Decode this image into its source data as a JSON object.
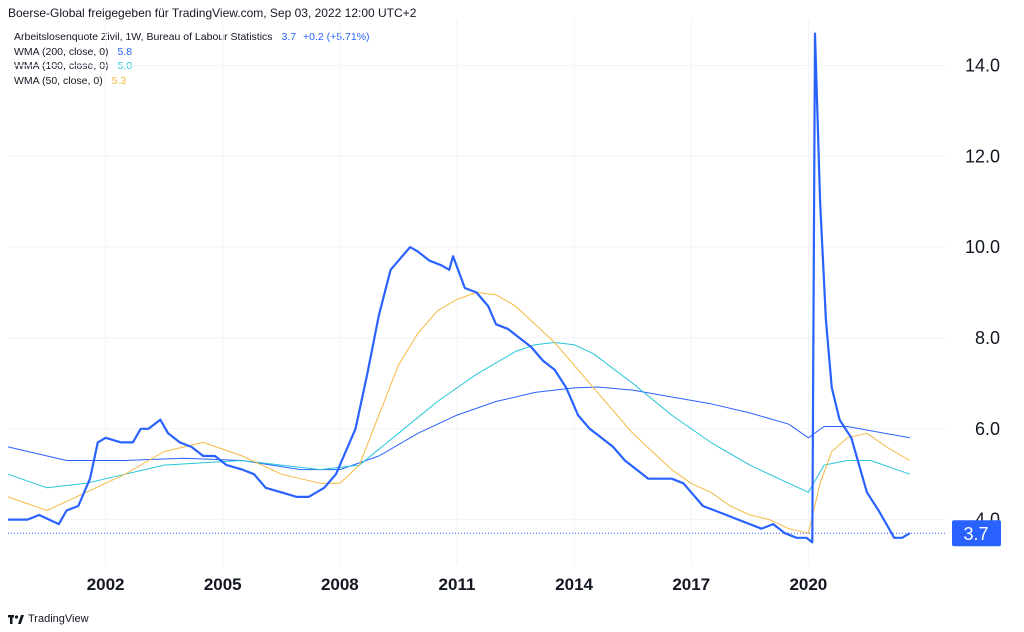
{
  "header": {
    "text": "Boerse-Global freigegeben für TradingView.com, Sep 03, 2022 12:00 UTC+2"
  },
  "legend": [
    {
      "label": "Arbeitslosenquote Zivil, 1W, Bureau of Labour Statistics",
      "value": "3.7",
      "change": "+0.2 (+5.71%)",
      "color": "#2962ff"
    },
    {
      "label": "WMA (200, close, 0)",
      "value": "5.8",
      "color": "#2962ff"
    },
    {
      "label": "WMA (100, close, 0)",
      "value": "5.0",
      "color": "#26c6da"
    },
    {
      "label": "WMA (50, close, 0)",
      "value": "5.3",
      "color": "#f5b942"
    }
  ],
  "footer": {
    "brand": "TradingView",
    "logo": "tradingview-logo-icon"
  },
  "price_label": {
    "value": "3.7",
    "color": "#2962ff"
  },
  "chart_data": {
    "type": "line",
    "xlim": [
      1999.5,
      2023.5
    ],
    "ylim": [
      3.0,
      15.0
    ],
    "yticks": [
      4.0,
      6.0,
      8.0,
      10.0,
      12.0,
      14.0
    ],
    "ytick_labels": [
      "4.0",
      "6.0",
      "8.0",
      "10.0",
      "12.0",
      "14.0"
    ],
    "xticks": [
      2002,
      2005,
      2008,
      2011,
      2014,
      2017,
      2020
    ],
    "xtick_labels": [
      "2002",
      "2005",
      "2008",
      "2011",
      "2014",
      "2017",
      "2020"
    ],
    "grid": true,
    "last_value": 3.7,
    "series": [
      {
        "color": "#2962ff",
        "width": 2.2,
        "x": [
          1999.5,
          2000.0,
          2000.3,
          2000.8,
          2001.0,
          2001.3,
          2001.6,
          2001.8,
          2002.0,
          2002.4,
          2002.7,
          2002.9,
          2003.1,
          2003.4,
          2003.6,
          2003.9,
          2004.2,
          2004.5,
          2004.8,
          2005.1,
          2005.5,
          2005.8,
          2006.1,
          2006.5,
          2006.9,
          2007.2,
          2007.6,
          2007.9,
          2008.1,
          2008.4,
          2008.7,
          2009.0,
          2009.3,
          2009.6,
          2009.8,
          2010.0,
          2010.3,
          2010.6,
          2010.8,
          2010.9,
          2011.2,
          2011.5,
          2011.8,
          2012.0,
          2012.3,
          2012.6,
          2012.9,
          2013.2,
          2013.5,
          2013.8,
          2014.1,
          2014.4,
          2014.7,
          2015.0,
          2015.3,
          2015.6,
          2015.9,
          2016.2,
          2016.5,
          2016.8,
          2017.0,
          2017.3,
          2017.6,
          2017.9,
          2018.2,
          2018.5,
          2018.8,
          2019.1,
          2019.4,
          2019.7,
          2019.95,
          2020.1,
          2020.17,
          2020.3,
          2020.45,
          2020.6,
          2020.8,
          2020.95,
          2021.1,
          2021.3,
          2021.5,
          2021.8,
          2022.0,
          2022.2,
          2022.4,
          2022.6
        ],
        "y": [
          4.0,
          4.0,
          4.1,
          3.9,
          4.2,
          4.3,
          4.9,
          5.7,
          5.8,
          5.7,
          5.7,
          6.0,
          6.0,
          6.2,
          5.9,
          5.7,
          5.6,
          5.4,
          5.4,
          5.2,
          5.1,
          5.0,
          4.7,
          4.6,
          4.5,
          4.5,
          4.7,
          5.0,
          5.4,
          6.0,
          7.2,
          8.5,
          9.5,
          9.8,
          10.0,
          9.9,
          9.7,
          9.6,
          9.5,
          9.8,
          9.1,
          9.0,
          8.7,
          8.3,
          8.2,
          8.0,
          7.8,
          7.5,
          7.3,
          6.9,
          6.3,
          6.0,
          5.8,
          5.6,
          5.3,
          5.1,
          4.9,
          4.9,
          4.9,
          4.8,
          4.6,
          4.3,
          4.2,
          4.1,
          4.0,
          3.9,
          3.8,
          3.9,
          3.7,
          3.6,
          3.6,
          3.5,
          14.7,
          11.0,
          8.4,
          6.9,
          6.2,
          6.0,
          5.8,
          5.2,
          4.6,
          4.2,
          3.9,
          3.6,
          3.6,
          3.7
        ]
      },
      {
        "color": "#f5b942",
        "width": 1,
        "x": [
          1999.5,
          2000.5,
          2001.5,
          2002.5,
          2003.5,
          2004.5,
          2005.5,
          2006.5,
          2007.5,
          2008.0,
          2008.5,
          2009.0,
          2009.5,
          2010.0,
          2010.5,
          2011.0,
          2011.5,
          2012.0,
          2012.5,
          2013.0,
          2013.5,
          2014.0,
          2014.5,
          2015.0,
          2015.5,
          2016.0,
          2016.5,
          2017.0,
          2017.5,
          2018.0,
          2018.5,
          2019.0,
          2019.5,
          2020.0,
          2020.3,
          2020.6,
          2021.0,
          2021.5,
          2022.0,
          2022.6
        ],
        "y": [
          4.5,
          4.2,
          4.6,
          5.0,
          5.5,
          5.7,
          5.4,
          5.0,
          4.8,
          4.8,
          5.2,
          6.3,
          7.4,
          8.1,
          8.6,
          8.85,
          9.0,
          8.95,
          8.7,
          8.3,
          7.9,
          7.4,
          6.9,
          6.4,
          5.9,
          5.5,
          5.1,
          4.8,
          4.6,
          4.3,
          4.1,
          4.0,
          3.8,
          3.7,
          4.8,
          5.5,
          5.8,
          5.9,
          5.6,
          5.3
        ]
      },
      {
        "color": "#26c6da",
        "width": 1,
        "x": [
          1999.5,
          2000.5,
          2001.5,
          2002.5,
          2003.5,
          2004.5,
          2005.5,
          2006.5,
          2007.5,
          2008.5,
          2009.5,
          2010.5,
          2011.5,
          2012.5,
          2013.0,
          2013.5,
          2014.0,
          2014.5,
          2015.5,
          2016.5,
          2017.5,
          2018.5,
          2019.5,
          2020.0,
          2020.4,
          2021.0,
          2021.6,
          2022.6
        ],
        "y": [
          5.0,
          4.7,
          4.8,
          5.0,
          5.2,
          5.25,
          5.3,
          5.2,
          5.1,
          5.2,
          5.9,
          6.6,
          7.2,
          7.7,
          7.85,
          7.9,
          7.85,
          7.65,
          7.0,
          6.3,
          5.7,
          5.2,
          4.8,
          4.6,
          5.2,
          5.3,
          5.3,
          5.0
        ]
      },
      {
        "color": "#2962ff",
        "width": 1,
        "x": [
          1999.5,
          2001.0,
          2002.5,
          2004.0,
          2005.5,
          2007.0,
          2008.0,
          2009.0,
          2010.0,
          2011.0,
          2012.0,
          2013.0,
          2014.0,
          2014.6,
          2015.5,
          2016.5,
          2017.5,
          2018.5,
          2019.5,
          2020.0,
          2020.4,
          2021.0,
          2022.6
        ],
        "y": [
          5.6,
          5.3,
          5.3,
          5.35,
          5.3,
          5.1,
          5.1,
          5.4,
          5.9,
          6.3,
          6.6,
          6.8,
          6.9,
          6.92,
          6.85,
          6.7,
          6.55,
          6.35,
          6.1,
          5.8,
          6.05,
          6.05,
          5.8
        ]
      }
    ]
  }
}
